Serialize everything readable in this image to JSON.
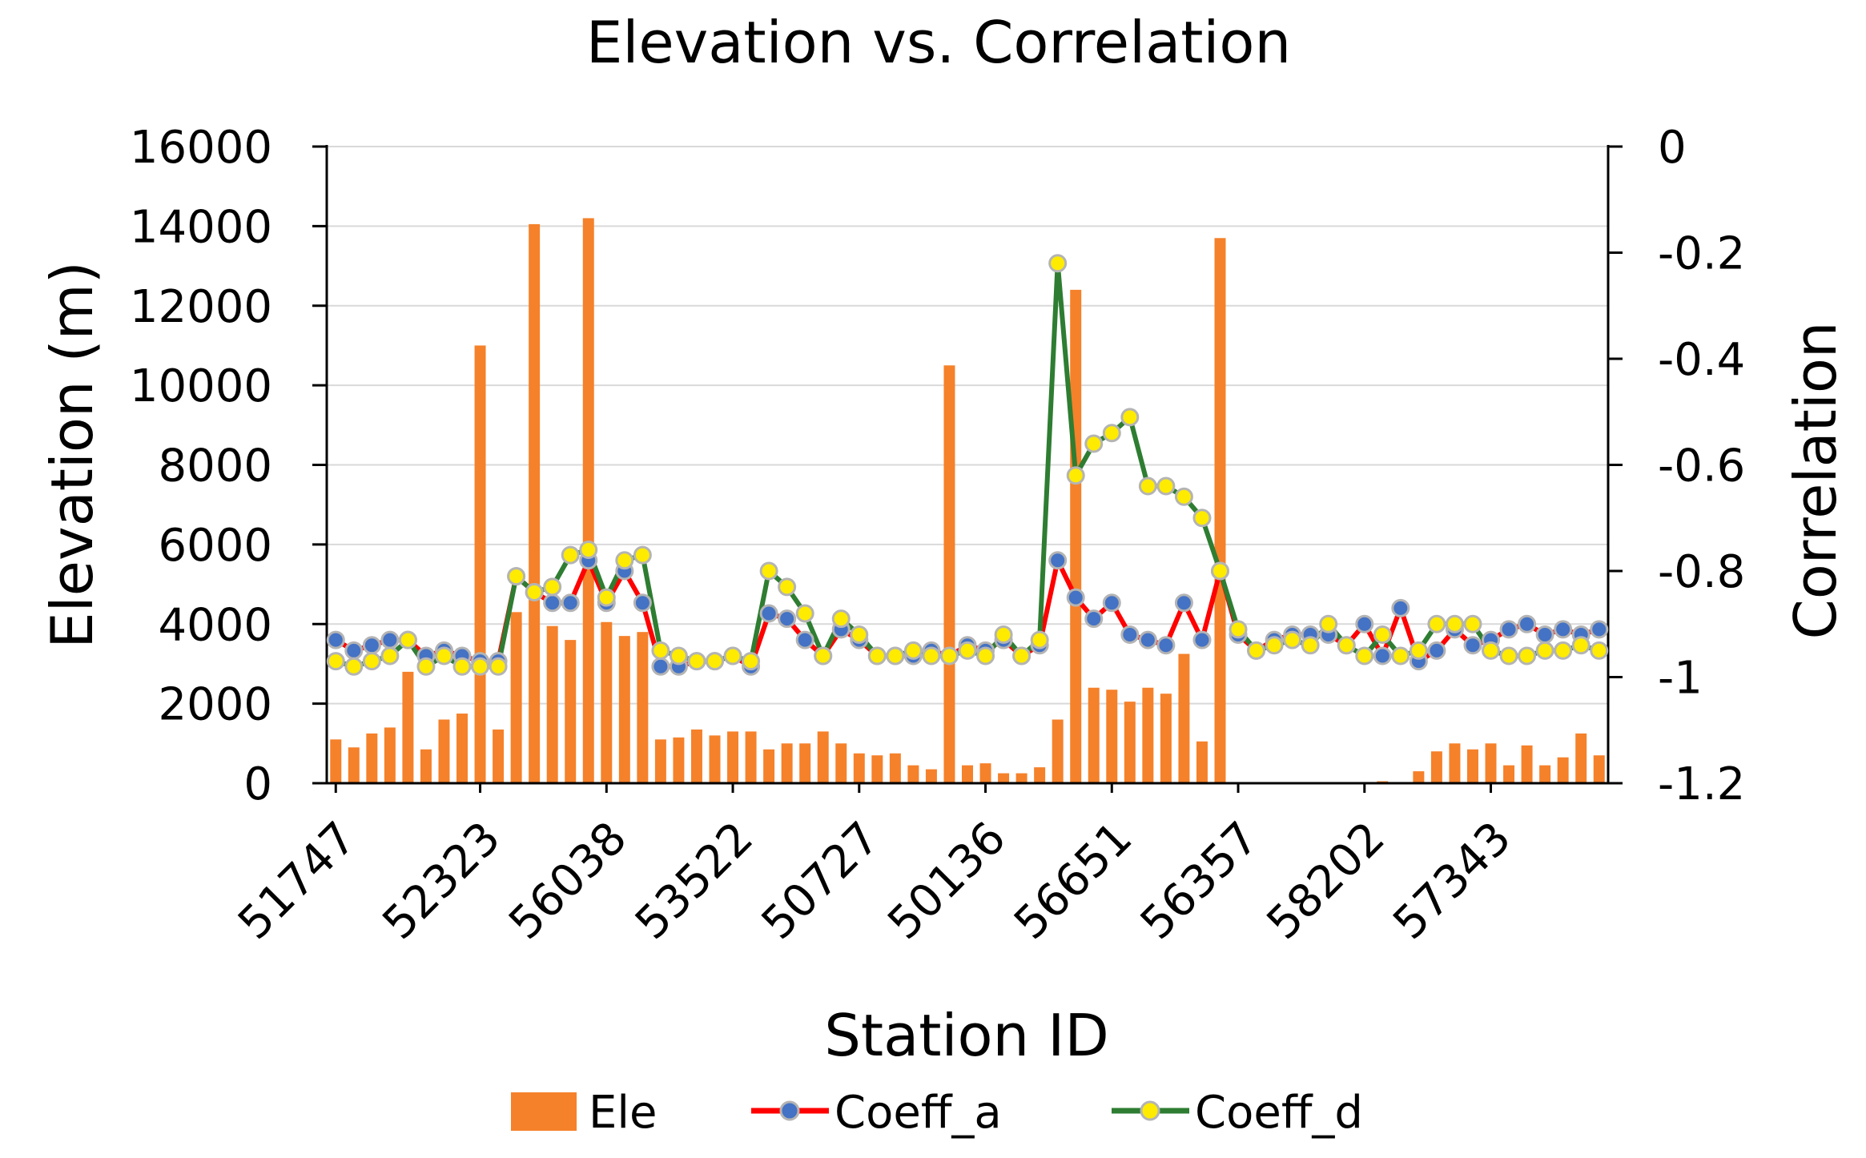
{
  "chart_data": {
    "type": "bar+line",
    "title": "Elevation vs. Correlation",
    "xlabel": "Station ID",
    "ylabel_left": "Elevation (m)",
    "ylabel_right": "Correlation",
    "ylim_left": [
      0,
      16000
    ],
    "ylim_right": [
      -1.2,
      0
    ],
    "yticks_left": [
      "0",
      "2000",
      "4000",
      "6000",
      "8000",
      "10000",
      "12000",
      "14000",
      "16000"
    ],
    "yticks_right": [
      "-1.2",
      "-1",
      "-0.8",
      "-0.6",
      "-0.4",
      "-0.2",
      "0"
    ],
    "xtick_labels": [
      {
        "index": 0,
        "label": "51747"
      },
      {
        "index": 8,
        "label": "52323"
      },
      {
        "index": 15,
        "label": "56038"
      },
      {
        "index": 22,
        "label": "53522"
      },
      {
        "index": 29,
        "label": "50727"
      },
      {
        "index": 36,
        "label": "50136"
      },
      {
        "index": 43,
        "label": "56651"
      },
      {
        "index": 50,
        "label": "56357"
      },
      {
        "index": 57,
        "label": "58202"
      },
      {
        "index": 64,
        "label": "57343"
      }
    ],
    "grid": true,
    "legend": "bottom",
    "series": [
      {
        "name": "Ele",
        "type": "bar",
        "axis": "left",
        "color": "#F5812A",
        "values": [
          1100,
          900,
          1250,
          1400,
          2800,
          850,
          1600,
          1750,
          11000,
          1350,
          4300,
          14050,
          3950,
          3600,
          14200,
          4050,
          3700,
          3800,
          1100,
          1150,
          1350,
          1200,
          1300,
          1300,
          850,
          1000,
          1000,
          1300,
          1000,
          750,
          700,
          750,
          450,
          350,
          10500,
          450,
          500,
          250,
          250,
          400,
          1600,
          12400,
          2400,
          2350,
          2050,
          2400,
          2250,
          3250,
          1050,
          13700,
          0,
          0,
          0,
          0,
          0,
          0,
          0,
          0,
          50,
          0,
          300,
          800,
          1000,
          850,
          1000,
          450,
          950,
          450,
          650,
          1250,
          700
        ]
      },
      {
        "name": "Coeff_a",
        "type": "line",
        "axis": "right",
        "color": "#FF0000",
        "marker_color": "#4472C4",
        "values": [
          -0.93,
          -0.95,
          -0.94,
          -0.93,
          -0.93,
          -0.96,
          -0.95,
          -0.96,
          -0.97,
          -0.97,
          -0.81,
          -0.84,
          -0.86,
          -0.86,
          -0.78,
          -0.86,
          -0.8,
          -0.86,
          -0.98,
          -0.98,
          -0.97,
          -0.97,
          -0.96,
          -0.98,
          -0.88,
          -0.89,
          -0.93,
          -0.96,
          -0.91,
          -0.93,
          -0.96,
          -0.96,
          -0.96,
          -0.95,
          -0.96,
          -0.94,
          -0.95,
          -0.93,
          -0.96,
          -0.94,
          -0.78,
          -0.85,
          -0.89,
          -0.86,
          -0.92,
          -0.93,
          -0.94,
          -0.86,
          -0.93,
          -0.8,
          -0.92,
          -0.95,
          -0.93,
          -0.92,
          -0.92,
          -0.92,
          -0.94,
          -0.9,
          -0.96,
          -0.87,
          -0.97,
          -0.95,
          -0.91,
          -0.94,
          -0.93,
          -0.91,
          -0.9,
          -0.92,
          -0.91,
          -0.92,
          -0.91
        ]
      },
      {
        "name": "Coeff_d",
        "type": "line",
        "axis": "right",
        "color": "#2E7D32",
        "marker_color": "#FFEB00",
        "values": [
          -0.97,
          -0.98,
          -0.97,
          -0.96,
          -0.93,
          -0.98,
          -0.96,
          -0.98,
          -0.98,
          -0.98,
          -0.81,
          -0.84,
          -0.83,
          -0.77,
          -0.76,
          -0.85,
          -0.78,
          -0.77,
          -0.95,
          -0.96,
          -0.97,
          -0.97,
          -0.96,
          -0.97,
          -0.8,
          -0.83,
          -0.88,
          -0.96,
          -0.89,
          -0.92,
          -0.96,
          -0.96,
          -0.95,
          -0.96,
          -0.96,
          -0.95,
          -0.96,
          -0.92,
          -0.96,
          -0.93,
          -0.22,
          -0.62,
          -0.56,
          -0.54,
          -0.51,
          -0.64,
          -0.64,
          -0.66,
          -0.7,
          -0.8,
          -0.91,
          -0.95,
          -0.94,
          -0.93,
          -0.94,
          -0.9,
          -0.94,
          -0.96,
          -0.92,
          -0.96,
          -0.95,
          -0.9,
          -0.9,
          -0.9,
          -0.95,
          -0.96,
          -0.96,
          -0.95,
          -0.95,
          -0.94,
          -0.95
        ]
      }
    ]
  }
}
